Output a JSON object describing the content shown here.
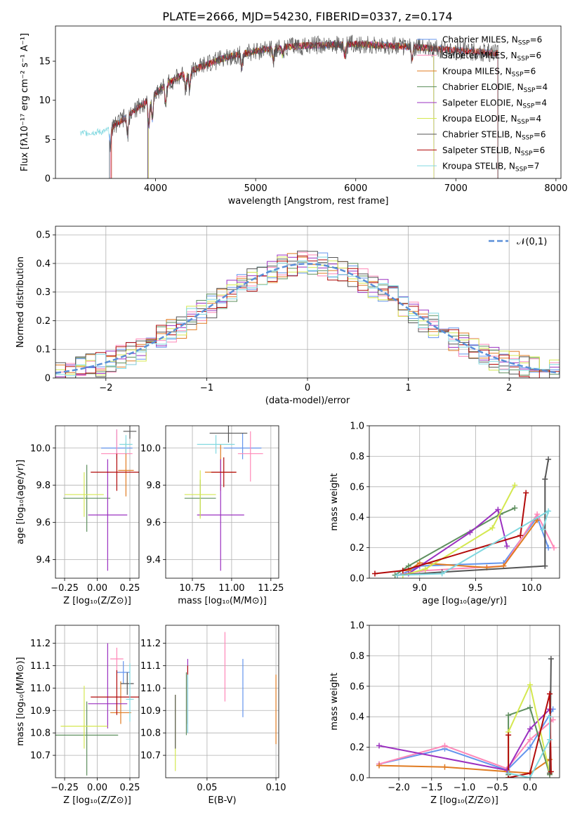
{
  "title": "PLATE=2666, MJD=54230, FIBERID=0337, z=0.174",
  "models": [
    {
      "name": "Chabrier MILES",
      "n": "6",
      "color": "#6495ed"
    },
    {
      "name": "Salpeter MILES",
      "n": "6",
      "color": "#ff88b8"
    },
    {
      "name": "Kroupa MILES",
      "n": "6",
      "color": "#e07b22"
    },
    {
      "name": "Chabrier ELODIE",
      "n": "4",
      "color": "#5e8f5e"
    },
    {
      "name": "Salpeter ELODIE",
      "n": "4",
      "color": "#9b30c0"
    },
    {
      "name": "Kroupa ELODIE",
      "n": "4",
      "color": "#d4e850"
    },
    {
      "name": "Chabrier STELIB",
      "n": "6",
      "color": "#555555"
    },
    {
      "name": "Salpeter STELIB",
      "n": "6",
      "color": "#b20a0a"
    },
    {
      "name": "Kroupa STELIB",
      "n": "7",
      "color": "#80d8e0"
    }
  ],
  "chart_data": [
    {
      "id": "spectrum",
      "type": "line",
      "xlabel": "wavelength [Angstrom, rest frame]",
      "ylabel": "Flux [fλ10⁻¹⁷ erg cm⁻² s⁻¹ A⁻¹]",
      "xlim": [
        3000,
        8050
      ],
      "ylim": [
        0,
        19.5
      ],
      "xticks": [
        4000,
        5000,
        6000,
        7000,
        8000
      ],
      "yticks": [
        0,
        5,
        10,
        15
      ],
      "data_range": [
        3250,
        7420
      ],
      "continuum": [
        [
          3250,
          5.8
        ],
        [
          3500,
          6.0
        ],
        [
          3700,
          7.8
        ],
        [
          3900,
          9.8
        ],
        [
          4100,
          12.0
        ],
        [
          4300,
          13.5
        ],
        [
          4500,
          14.5
        ],
        [
          4700,
          15.5
        ],
        [
          4900,
          16.0
        ],
        [
          5100,
          16.5
        ],
        [
          5300,
          16.8
        ],
        [
          5500,
          17.0
        ],
        [
          5800,
          17.1
        ],
        [
          6000,
          17.2
        ],
        [
          6300,
          17.0
        ],
        [
          6600,
          16.8
        ],
        [
          7000,
          16.4
        ],
        [
          7420,
          16.0
        ]
      ],
      "dips": [
        [
          3550,
          -2.0
        ],
        [
          3720,
          -2.5
        ],
        [
          3934,
          -3.5
        ],
        [
          3968,
          -3.0
        ],
        [
          4102,
          -2.5
        ],
        [
          4300,
          -2.0
        ],
        [
          4340,
          -2.2
        ],
        [
          4861,
          -1.8
        ],
        [
          5175,
          -1.5
        ],
        [
          5270,
          -1.0
        ],
        [
          5890,
          -1.5
        ],
        [
          6563,
          -1.5
        ]
      ],
      "model_edges": [
        [
          3540,
          7420
        ],
        [
          3550,
          7420
        ],
        [
          3560,
          7420
        ],
        [
          3920,
          6780
        ],
        [
          3925,
          6780
        ],
        [
          3930,
          6780
        ],
        [
          3540,
          7420
        ],
        [
          3560,
          7420
        ],
        [
          3250,
          7420
        ]
      ],
      "grid": false,
      "legend": "upper right"
    },
    {
      "id": "residuals",
      "type": "histogram",
      "xlabel": "(data-model)/error",
      "ylabel": "Normed distribution",
      "xlim": [
        -2.5,
        2.5
      ],
      "ylim": [
        0,
        0.53
      ],
      "xticks": [
        -2,
        -1,
        0,
        1,
        2
      ],
      "yticks": [
        0,
        0.1,
        0.2,
        0.3,
        0.4,
        0.5
      ],
      "bin_width": 0.1,
      "gaussian_label": "𝒩(0,1)",
      "grid": true,
      "legend": "upper right"
    },
    {
      "id": "age_vs_Z",
      "type": "errorbar",
      "xlabel": "Z [log₁₀(Z/Z⊙)]",
      "ylabel": "age  [log₁₀(age/yr)]",
      "xlim": [
        -0.32,
        0.32
      ],
      "ylim": [
        9.3,
        10.12
      ],
      "xticks": [
        -0.25,
        0,
        0.25
      ],
      "xticklabels": [
        "−0.25",
        "0.00",
        "0.25"
      ],
      "yticks": [
        9.4,
        9.6,
        9.8,
        10.0
      ],
      "yticklabels": [
        "9.4",
        "9.6",
        "9.8",
        "10.0"
      ],
      "points": [
        [
          0.15,
          10.0,
          0.12,
          0.06,
          0.1
        ],
        [
          0.15,
          9.97,
          0.12,
          0.03,
          0.13
        ],
        [
          0.22,
          9.88,
          0.06,
          0.14,
          0.15
        ],
        [
          -0.08,
          9.73,
          0.18,
          0.18,
          0.18
        ],
        [
          0.08,
          9.64,
          0.15,
          0.3,
          0.3
        ],
        [
          -0.1,
          9.75,
          0.15,
          0.12,
          0.12
        ],
        [
          0.25,
          10.09,
          0.05,
          0.04,
          0.04
        ],
        [
          0.15,
          9.87,
          0.2,
          0.1,
          0.1
        ],
        [
          0.22,
          10.02,
          0.05,
          0.05,
          0.05
        ]
      ],
      "grid": true
    },
    {
      "id": "age_vs_mass",
      "type": "errorbar",
      "xlabel": "mass [log₁₀(M/M⊙)]",
      "ylabel": "",
      "xlim": [
        10.58,
        11.3
      ],
      "ylim": [
        9.3,
        10.12
      ],
      "xticks": [
        10.75,
        11.0,
        11.25
      ],
      "xticklabels": [
        "10.75",
        "11.00",
        "11.25"
      ],
      "yticks": [
        9.4,
        9.6,
        9.8,
        10.0
      ],
      "yticklabels": [
        "9.4",
        "9.6",
        "9.8",
        "10.0"
      ],
      "points": [
        [
          11.07,
          10.0,
          0.12,
          0.06,
          0.08
        ],
        [
          11.12,
          9.97,
          0.08,
          0.15,
          0.12
        ],
        [
          10.93,
          9.87,
          0.1,
          0.1,
          0.15
        ],
        [
          10.8,
          9.73,
          0.1,
          0.1,
          0.1
        ],
        [
          10.93,
          9.64,
          0.15,
          0.3,
          0.3
        ],
        [
          10.8,
          9.75,
          0.1,
          0.13,
          0.13
        ],
        [
          10.98,
          10.08,
          0.12,
          0.05,
          0.05
        ],
        [
          10.95,
          9.87,
          0.08,
          0.08,
          0.08
        ],
        [
          10.9,
          10.02,
          0.12,
          0.05,
          0.05
        ]
      ],
      "grid": true
    },
    {
      "id": "mw_vs_age",
      "type": "line",
      "xlabel": "age  [log₁₀(age/yr)]",
      "ylabel": "mass weight",
      "xlim": [
        8.55,
        10.25
      ],
      "ylim": [
        0,
        1.0
      ],
      "xticks": [
        9.0,
        9.5,
        10.0
      ],
      "xticklabels": [
        "9.0",
        "9.5",
        "10.0"
      ],
      "yticks": [
        0,
        0.2,
        0.4,
        0.6,
        0.8,
        1.0
      ],
      "yticklabels": [
        "0.0",
        "0.2",
        "0.4",
        "0.6",
        "0.8",
        "1.0"
      ],
      "series": [
        [
          [
            8.85,
            0.03
          ],
          [
            9.0,
            0.08
          ],
          [
            9.75,
            0.1
          ],
          [
            10.05,
            0.4
          ],
          [
            10.15,
            0.2
          ]
        ],
        [
          [
            8.8,
            0.02
          ],
          [
            9.05,
            0.05
          ],
          [
            9.75,
            0.08
          ],
          [
            10.05,
            0.42
          ],
          [
            10.2,
            0.2
          ]
        ],
        [
          [
            8.9,
            0.05
          ],
          [
            9.0,
            0.1
          ],
          [
            9.6,
            0.07
          ],
          [
            9.75,
            0.08
          ],
          [
            10.05,
            0.38
          ]
        ],
        [
          [
            8.78,
            0.02
          ],
          [
            8.9,
            0.08
          ],
          [
            9.72,
            0.42
          ],
          [
            9.85,
            0.46
          ]
        ],
        [
          [
            8.9,
            0.03
          ],
          [
            9.45,
            0.3
          ],
          [
            9.7,
            0.45
          ],
          [
            9.78,
            0.21
          ]
        ],
        [
          [
            8.85,
            0.02
          ],
          [
            9.05,
            0.06
          ],
          [
            9.65,
            0.33
          ],
          [
            9.85,
            0.61
          ]
        ],
        [
          [
            8.8,
            0.02
          ],
          [
            9.2,
            0.04
          ],
          [
            10.12,
            0.08
          ],
          [
            10.12,
            0.65
          ],
          [
            10.15,
            0.78
          ]
        ],
        [
          [
            8.6,
            0.03
          ],
          [
            8.85,
            0.05
          ],
          [
            9.9,
            0.28
          ],
          [
            9.95,
            0.56
          ]
        ],
        [
          [
            8.8,
            0.02
          ],
          [
            9.2,
            0.03
          ],
          [
            10.15,
            0.44
          ],
          [
            10.1,
            0.32
          ]
        ]
      ],
      "grid": true
    },
    {
      "id": "mass_vs_Z",
      "type": "errorbar",
      "xlabel": "Z [log₁₀(Z/Z⊙)]",
      "ylabel": "mass [log₁₀(M/M⊙)]",
      "xlim": [
        -0.32,
        0.32
      ],
      "ylim": [
        10.6,
        11.28
      ],
      "xticks": [
        -0.25,
        0,
        0.25
      ],
      "xticklabels": [
        "−0.25",
        "0.00",
        "0.25"
      ],
      "yticks": [
        10.7,
        10.8,
        10.9,
        11.0,
        11.1,
        11.2
      ],
      "yticklabels": [
        "10.7",
        "10.8",
        "10.9",
        "11.0",
        "11.1",
        "11.2"
      ],
      "points": [
        [
          0.2,
          11.07,
          0.05,
          0.05,
          0.05
        ],
        [
          0.15,
          11.13,
          0.05,
          0.05,
          0.05
        ],
        [
          0.18,
          10.89,
          0.08,
          0.05,
          0.14
        ],
        [
          -0.08,
          10.79,
          0.24,
          0.18,
          0.15
        ],
        [
          0.08,
          10.93,
          0.15,
          0.11,
          0.27
        ],
        [
          -0.1,
          10.83,
          0.18,
          0.1,
          0.18
        ],
        [
          0.23,
          11.02,
          0.05,
          0.05,
          0.05
        ],
        [
          0.15,
          10.96,
          0.2,
          0.08,
          0.12
        ],
        [
          0.25,
          10.95,
          0.03,
          0.1,
          0.16
        ]
      ],
      "grid": true
    },
    {
      "id": "mass_vs_ebv",
      "type": "errorbar",
      "xlabel": "E(B-V)",
      "ylabel": "",
      "xlim": [
        0.02,
        0.102
      ],
      "ylim": [
        10.6,
        11.28
      ],
      "xticks": [
        0.05,
        0.1
      ],
      "xticklabels": [
        "0.05",
        "0.10"
      ],
      "yticks": [
        10.7,
        10.8,
        10.9,
        11.0,
        11.1,
        11.2
      ],
      "yticklabels": [
        "10.7",
        "10.8",
        "10.9",
        "11.0",
        "11.1",
        "11.2"
      ],
      "points": [
        [
          0.076,
          11.0,
          0,
          0.13,
          0.13
        ],
        [
          0.063,
          11.09,
          0,
          0.15,
          0.16
        ],
        [
          0.1,
          10.9,
          0,
          0.15,
          0.16
        ],
        [
          0.035,
          10.93,
          0,
          0.14,
          0.14
        ],
        [
          0.036,
          10.95,
          0,
          0.15,
          0.18
        ],
        [
          0.027,
          10.8,
          0,
          0.17,
          0.17
        ],
        [
          0.027,
          10.85,
          0,
          0.12,
          0.12
        ],
        [
          0.036,
          10.97,
          0,
          0.13,
          0.13
        ],
        [
          0.036,
          10.93,
          0,
          0.13,
          0.13
        ]
      ],
      "grid": true
    },
    {
      "id": "mw_vs_Z",
      "type": "line",
      "xlabel": "Z [log₁₀(Z/Z⊙)]",
      "ylabel": "mass weight",
      "xlim": [
        -2.45,
        0.45
      ],
      "ylim": [
        0,
        1.0
      ],
      "xticks": [
        -2.0,
        -1.5,
        -1.0,
        -0.5,
        0.0
      ],
      "xticklabels": [
        "−2.0",
        "−1.5",
        "−1.0",
        "−0.5",
        "0.0"
      ],
      "yticks": [
        0,
        0.2,
        0.4,
        0.6,
        0.8,
        1.0
      ],
      "yticklabels": [
        "0.0",
        "0.2",
        "0.4",
        "0.6",
        "0.8",
        "1.0"
      ],
      "series": [
        [
          [
            -2.3,
            0.09
          ],
          [
            -1.3,
            0.19
          ],
          [
            -0.35,
            0.05
          ],
          [
            0.0,
            0.2
          ],
          [
            0.35,
            0.45
          ]
        ],
        [
          [
            -2.3,
            0.09
          ],
          [
            -1.3,
            0.21
          ],
          [
            -0.35,
            0.06
          ],
          [
            0.0,
            0.25
          ],
          [
            0.35,
            0.38
          ]
        ],
        [
          [
            -2.3,
            0.08
          ],
          [
            -1.3,
            0.07
          ],
          [
            -0.35,
            0.04
          ],
          [
            0.0,
            0.03
          ],
          [
            0.3,
            0.12
          ]
        ],
        [
          [
            -0.33,
            0.02
          ],
          [
            -0.33,
            0.41
          ],
          [
            0.0,
            0.46
          ],
          [
            0.3,
            0.02
          ]
        ],
        [
          [
            -2.3,
            0.21
          ],
          [
            -0.35,
            0.05
          ],
          [
            0.0,
            0.32
          ],
          [
            0.3,
            0.45
          ]
        ],
        [
          [
            -0.33,
            0.0
          ],
          [
            -0.33,
            0.3
          ],
          [
            0.0,
            0.61
          ],
          [
            0.3,
            0.03
          ]
        ],
        [
          [
            0.3,
            0.03
          ],
          [
            0.32,
            0.78
          ]
        ],
        [
          [
            -0.33,
            0.28
          ],
          [
            -0.33,
            0.0
          ],
          [
            0.0,
            0.03
          ],
          [
            0.3,
            0.55
          ],
          [
            0.32,
            0.04
          ]
        ],
        [
          [
            -0.33,
            0.03
          ],
          [
            0.0,
            0.0
          ],
          [
            0.3,
            0.25
          ],
          [
            0.3,
            0.4
          ]
        ]
      ],
      "grid": true
    }
  ]
}
